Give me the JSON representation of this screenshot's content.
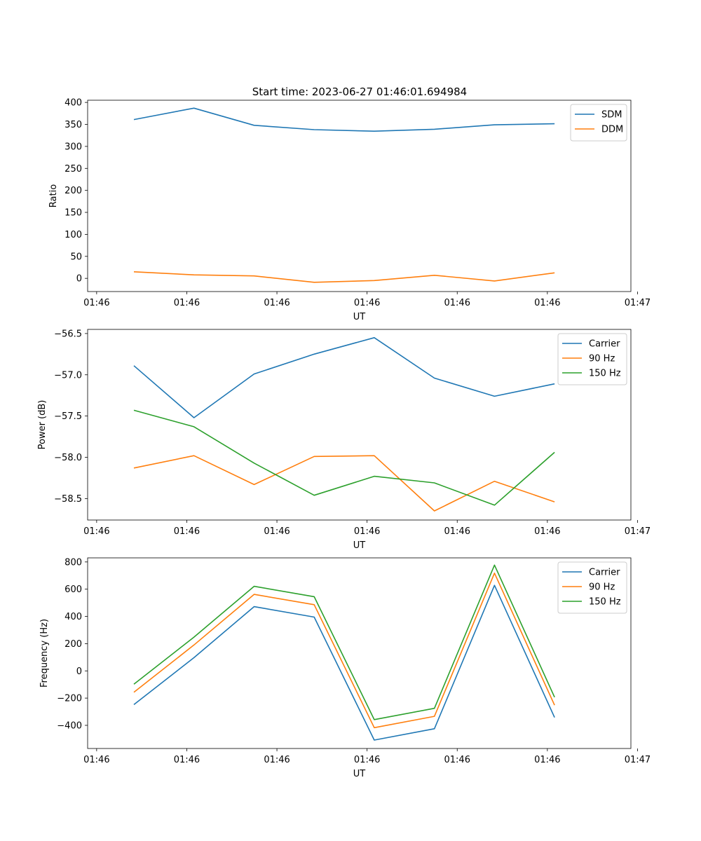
{
  "figure": {
    "title": "Start time: 2023-06-27 01:46:01.694984"
  },
  "chart_data": [
    {
      "type": "line",
      "xlabel": "UT",
      "ylabel": "Ratio",
      "x": [
        0,
        1,
        2,
        3,
        4,
        5,
        6,
        7
      ],
      "xlim": [
        -0.77,
        8.27
      ],
      "xticks": [
        -0.62,
        0.88,
        2.38,
        3.88,
        5.38,
        6.88,
        8.38
      ],
      "xtick_labels": [
        "01:46",
        "01:46",
        "01:46",
        "01:46",
        "01:46",
        "01:46",
        "01:47"
      ],
      "ylim": [
        -30,
        405
      ],
      "yticks": [
        0,
        50,
        100,
        150,
        200,
        250,
        300,
        350,
        400
      ],
      "ytick_labels": [
        "0",
        "50",
        "100",
        "150",
        "200",
        "250",
        "300",
        "350",
        "400"
      ],
      "legend_position": "top-right",
      "series": [
        {
          "name": "SDM",
          "color": "#1f77b4",
          "values": [
            361,
            387,
            348,
            338,
            334.5,
            339,
            349,
            351.5
          ]
        },
        {
          "name": "DDM",
          "color": "#ff7f0e",
          "values": [
            15,
            8,
            5.5,
            -9,
            -5,
            7,
            -6,
            12.5
          ]
        }
      ]
    },
    {
      "type": "line",
      "xlabel": "UT",
      "ylabel": "Power (dB)",
      "x": [
        0,
        1,
        2,
        3,
        4,
        5,
        6,
        7
      ],
      "xlim": [
        -0.77,
        8.27
      ],
      "xticks": [
        -0.62,
        0.88,
        2.38,
        3.88,
        5.38,
        6.88,
        8.38
      ],
      "xtick_labels": [
        "01:46",
        "01:46",
        "01:46",
        "01:46",
        "01:46",
        "01:46",
        "01:47"
      ],
      "ylim": [
        -58.76,
        -56.45
      ],
      "yticks": [
        -58.5,
        -58.0,
        -57.5,
        -57.0,
        -56.5
      ],
      "ytick_labels": [
        "−58.5",
        "−58.0",
        "−57.5",
        "−57.0",
        "−56.5"
      ],
      "legend_position": "top-right",
      "series": [
        {
          "name": "Carrier",
          "color": "#1f77b4",
          "values": [
            -56.89,
            -57.52,
            -56.99,
            -56.75,
            -56.55,
            -57.04,
            -57.26,
            -57.11
          ]
        },
        {
          "name": "90 Hz",
          "color": "#ff7f0e",
          "values": [
            -58.13,
            -57.98,
            -58.33,
            -57.99,
            -57.98,
            -58.65,
            -58.29,
            -58.54
          ]
        },
        {
          "name": "150 Hz",
          "color": "#2ca02c",
          "values": [
            -57.43,
            -57.63,
            -58.07,
            -58.46,
            -58.23,
            -58.31,
            -58.58,
            -57.94
          ]
        }
      ]
    },
    {
      "type": "line",
      "xlabel": "UT",
      "ylabel": "Frequency (Hz)",
      "x": [
        0,
        1,
        2,
        3,
        4,
        5,
        6,
        7
      ],
      "xlim": [
        -0.77,
        8.27
      ],
      "xticks": [
        -0.62,
        0.88,
        2.38,
        3.88,
        5.38,
        6.88,
        8.38
      ],
      "xtick_labels": [
        "01:46",
        "01:46",
        "01:46",
        "01:46",
        "01:46",
        "01:46",
        "01:47"
      ],
      "ylim": [
        -570,
        830
      ],
      "yticks": [
        -400,
        -200,
        0,
        200,
        400,
        600,
        800
      ],
      "ytick_labels": [
        "−400",
        "−200",
        "0",
        "200",
        "400",
        "600",
        "800"
      ],
      "legend_position": "top-right",
      "series": [
        {
          "name": "Carrier",
          "color": "#1f77b4",
          "values": [
            -248,
            97,
            472,
            395,
            -508,
            -425,
            628,
            -342
          ]
        },
        {
          "name": "90 Hz",
          "color": "#ff7f0e",
          "values": [
            -157,
            190,
            562,
            486,
            -417,
            -334,
            718,
            -252
          ]
        },
        {
          "name": "150 Hz",
          "color": "#2ca02c",
          "values": [
            -98,
            248,
            621,
            545,
            -358,
            -275,
            777,
            -193
          ]
        }
      ]
    }
  ]
}
